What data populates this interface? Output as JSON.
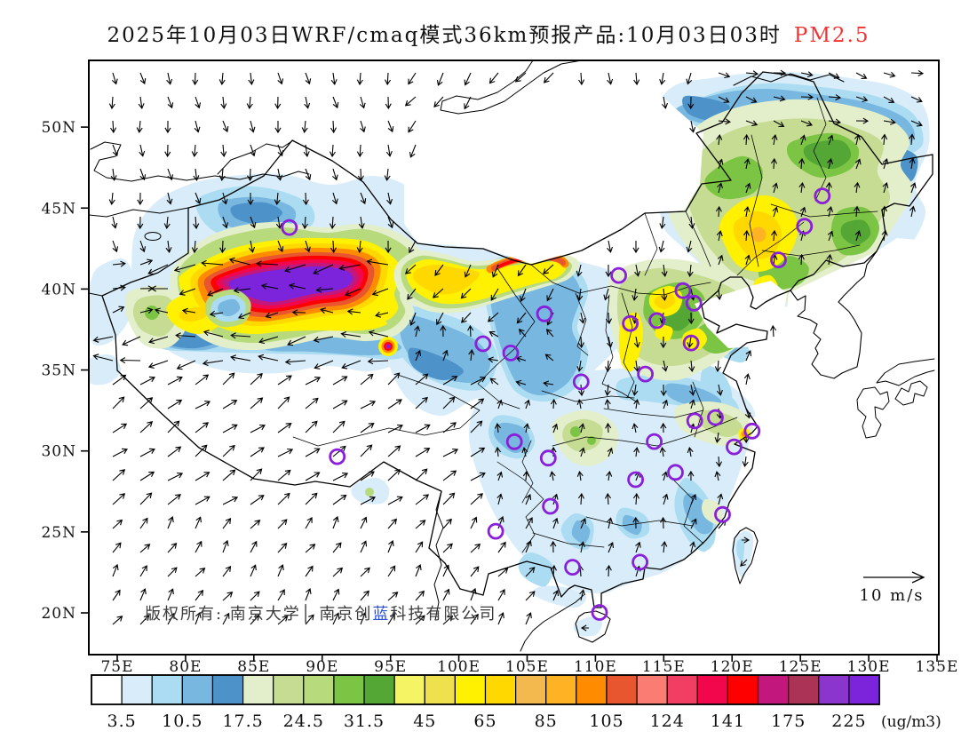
{
  "title": {
    "text": "2025年10月03日WRF/cmaq模式36km预报产品:10月03日03时",
    "highlight": "PM2.5",
    "highlight_color": "#f53232"
  },
  "copyright": {
    "part1": "版权所有: 南京大学",
    "divider": "│",
    "part2": " 南京创",
    "part2_blue": "蓝",
    "part3": "科技有限公司",
    "blue_color": "#2b50d6"
  },
  "wind_legend": {
    "label": "10 m/s"
  },
  "axes": {
    "lat_labels": [
      "50N",
      "45N",
      "40N",
      "35N",
      "30N",
      "25N",
      "20N"
    ],
    "lat_values": [
      50,
      45,
      40,
      35,
      30,
      25,
      20
    ],
    "lon_labels": [
      "75E",
      "80E",
      "85E",
      "90E",
      "95E",
      "100E",
      "105E",
      "110E",
      "115E",
      "120E",
      "125E",
      "130E",
      "135E"
    ],
    "lon_values": [
      75,
      80,
      85,
      90,
      95,
      100,
      105,
      110,
      115,
      120,
      125,
      130,
      135
    ]
  },
  "colorbar": {
    "unit": "(ug/m3)",
    "tick_labels": [
      "3.5",
      "10.5",
      "17.5",
      "24.5",
      "31.5",
      "45",
      "65",
      "85",
      "105",
      "124",
      "141",
      "175",
      "225"
    ],
    "segment_colors": [
      "#FFFFFF",
      "#D8EDF9",
      "#ABDCF2",
      "#77B7E0",
      "#4D92C8",
      "#E3EECB",
      "#C6DC92",
      "#B7DB7C",
      "#7CC544",
      "#55A735",
      "#F4F464",
      "#EFE14E",
      "#FFF100",
      "#FFD800",
      "#F4B94E",
      "#FFB224",
      "#FF8C00",
      "#E8562F",
      "#FA7C73",
      "#F23E62",
      "#F2074D",
      "#FE0000",
      "#C2187D",
      "#AA3356",
      "#8C35CC",
      "#7B24DB"
    ]
  },
  "map": {
    "station_marker_color": "#8a1fd9",
    "stations_lonlat": [
      [
        87.6,
        43.8
      ],
      [
        126.6,
        45.75
      ],
      [
        125.3,
        43.88
      ],
      [
        123.4,
        41.8
      ],
      [
        111.7,
        40.84
      ],
      [
        116.4,
        39.9
      ],
      [
        117.2,
        39.13
      ],
      [
        114.5,
        38.05
      ],
      [
        112.55,
        37.87
      ],
      [
        117.0,
        36.67
      ],
      [
        113.65,
        34.75
      ],
      [
        108.95,
        34.27
      ],
      [
        106.27,
        38.47
      ],
      [
        103.8,
        36.05
      ],
      [
        101.77,
        36.62
      ],
      [
        91.1,
        29.65
      ],
      [
        104.07,
        30.57
      ],
      [
        106.55,
        29.56
      ],
      [
        106.7,
        26.58
      ],
      [
        102.7,
        25.04
      ],
      [
        108.32,
        22.82
      ],
      [
        113.26,
        23.13
      ],
      [
        110.3,
        20.03
      ],
      [
        114.3,
        30.58
      ],
      [
        112.94,
        28.23
      ],
      [
        115.86,
        28.68
      ],
      [
        117.27,
        31.86
      ],
      [
        118.78,
        32.06
      ],
      [
        121.47,
        31.23
      ],
      [
        120.15,
        30.25
      ],
      [
        119.3,
        26.08
      ]
    ]
  }
}
